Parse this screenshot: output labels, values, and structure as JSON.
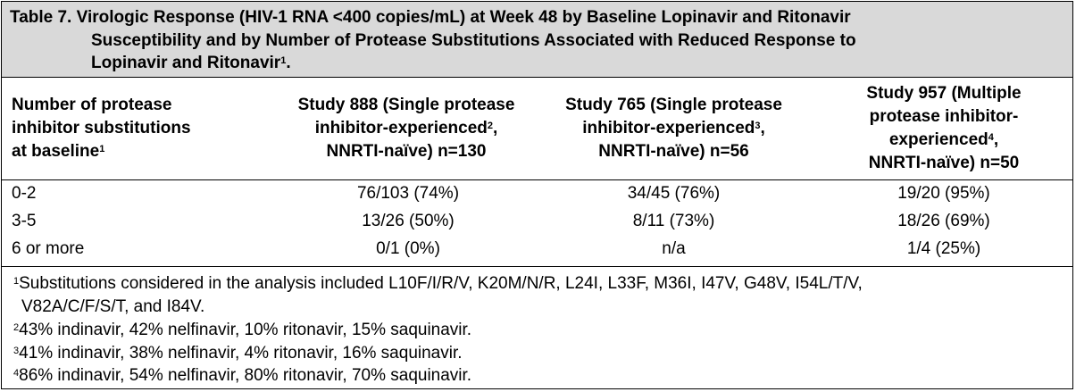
{
  "table": {
    "title": {
      "line1": "Table 7. Virologic Response (HIV-1 RNA <400 copies/mL) at Week 48 by Baseline Lopinavir and Ritonavir",
      "line2": "Susceptibility and by Number of Protease Substitutions Associated with Reduced Response to",
      "line3": "Lopinavir and Ritonavir",
      "line3_sup": "1",
      "line3_end": "."
    },
    "headers": {
      "col0": {
        "l1": "Number of protease",
        "l2": "inhibitor substitutions",
        "l3": "at baseline",
        "sup": "1"
      },
      "col1": {
        "l1": "Study 888 (Single protease",
        "l2": "inhibitor-experienced",
        "sup": "2",
        "l2_end": ",",
        "l3": "NNRTI-naïve) n=130"
      },
      "col2": {
        "l1": "Study 765 (Single protease",
        "l2": "inhibitor-experienced",
        "sup": "3",
        "l2_end": ",",
        "l3": "NNRTI-naïve) n=56"
      },
      "col3": {
        "l1": "Study 957 (Multiple",
        "l2": "protease inhibitor-",
        "l3": "experienced",
        "sup": "4",
        "l3_end": ",",
        "l4": "NNRTI-naïve) n=50"
      }
    },
    "rows": [
      {
        "substitutions": "0-2",
        "study888": "76/103 (74%)",
        "study765": "34/45 (76%)",
        "study957": "19/20 (95%)"
      },
      {
        "substitutions": "3-5",
        "study888": "13/26 (50%)",
        "study765": "8/11 (73%)",
        "study957": "18/26 (69%)"
      },
      {
        "substitutions": "6 or more",
        "study888": "0/1 (0%)",
        "study765": "n/a",
        "study957": "1/4 (25%)"
      }
    ],
    "footnotes": {
      "f1_mark": "1",
      "f1_line1": "Substitutions considered in the analysis included L10F/I/R/V, K20M/N/R, L24I, L33F, M36I, I47V, G48V, I54L/T/V,",
      "f1_line2": "V82A/C/F/S/T, and I84V.",
      "f2_mark": "2",
      "f2_text": "43% indinavir, 42% nelfinavir, 10% ritonavir, 15% saquinavir.",
      "f3_mark": "3",
      "f3_text": "41% indinavir, 38% nelfinavir, 4% ritonavir, 16% saquinavir.",
      "f4_mark": "4",
      "f4_text": "86% indinavir, 54% nelfinavir, 80% ritonavir, 70% saquinavir."
    }
  }
}
